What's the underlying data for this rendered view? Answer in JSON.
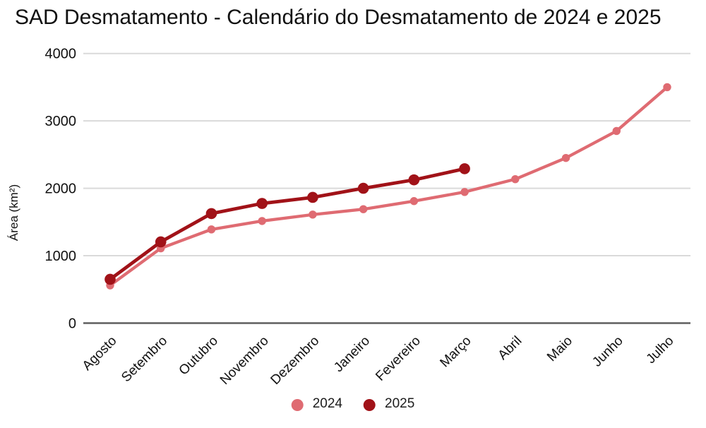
{
  "chart_data": {
    "type": "line",
    "title": "SAD Desmatamento - Calendário do Desmatamento de 2024 e 2025",
    "xlabel": "",
    "ylabel": "Área (km²)",
    "categories": [
      "Agosto",
      "Setembro",
      "Outubro",
      "Novembro",
      "Dezembro",
      "Janeiro",
      "Fevereiro",
      "Março",
      "Abril",
      "Maio",
      "Junho",
      "Julho"
    ],
    "ylim": [
      0,
      4000
    ],
    "yticks": [
      0,
      1000,
      2000,
      3000,
      4000
    ],
    "grid": true,
    "legend_position": "bottom",
    "series": [
      {
        "name": "2024",
        "color": "#df6b72",
        "values": [
          560,
          1110,
          1390,
          1515,
          1610,
          1690,
          1810,
          1945,
          2135,
          2450,
          2850,
          3500
        ]
      },
      {
        "name": "2025",
        "color": "#a11218",
        "values": [
          650,
          1205,
          1625,
          1775,
          1865,
          2000,
          2125,
          2290,
          null,
          null,
          null,
          null
        ]
      }
    ]
  },
  "colors": {
    "gridline": "#dadada",
    "baseline": "#5f5f5f",
    "text": "#111111"
  }
}
